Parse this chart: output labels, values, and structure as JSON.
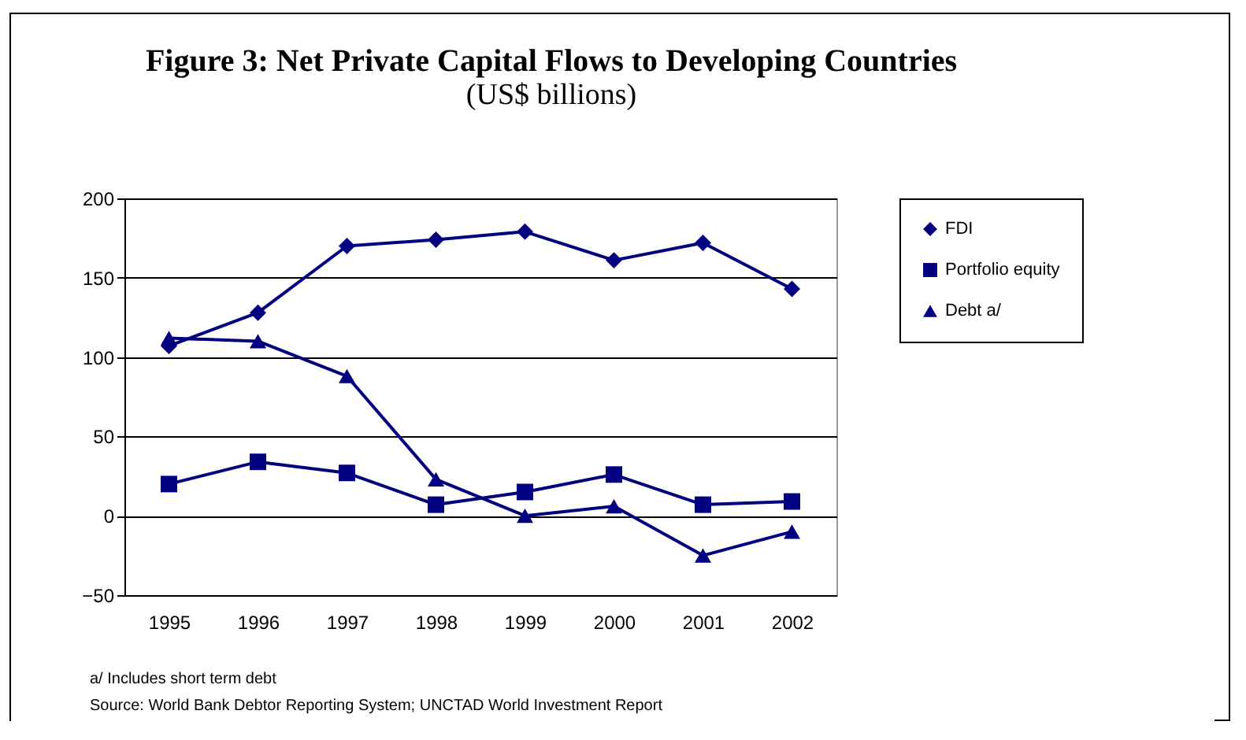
{
  "chart_data": {
    "type": "line",
    "title": "Figure 3: Net Private Capital Flows to Developing Countries",
    "subtitle": "(US$ billions)",
    "categories": [
      "1995",
      "1996",
      "1997",
      "1998",
      "1999",
      "2000",
      "2001",
      "2002"
    ],
    "series": [
      {
        "name": "FDI",
        "color": "#000080",
        "marker": "diamond",
        "values": [
          107,
          128,
          170,
          174,
          179,
          161,
          172,
          143
        ]
      },
      {
        "name": "Portfolio equity",
        "color": "#000080",
        "marker": "square",
        "values": [
          20,
          34,
          27,
          7,
          15,
          26,
          7,
          9
        ]
      },
      {
        "name": "Debt a/",
        "color": "#000080",
        "marker": "triangle",
        "values": [
          112,
          110,
          88,
          23,
          0,
          6,
          -25,
          -10
        ]
      }
    ],
    "ylim": [
      -50,
      200
    ],
    "yticks": [
      -50,
      0,
      50,
      100,
      150,
      200
    ],
    "grid": "y",
    "legend": "right",
    "line_style": "solid",
    "annotations": [
      "a/ Includes short term debt",
      "Source: World Bank Debtor Reporting System; UNCTAD World Investment Report"
    ]
  }
}
